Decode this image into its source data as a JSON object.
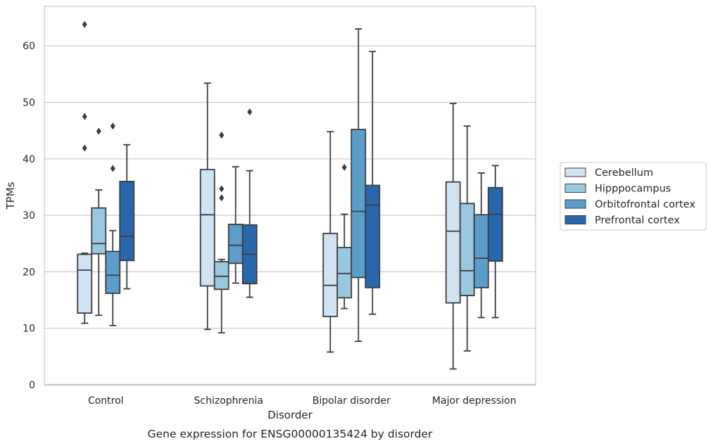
{
  "caption": "Gene expression for ENSG00000135424 by disorder",
  "chart_data": {
    "type": "box",
    "xlabel": "Disorder",
    "ylabel": "TPMs",
    "ylim": [
      0,
      67
    ],
    "yticks": [
      0,
      10,
      20,
      30,
      40,
      50,
      60
    ],
    "grid": true,
    "legend_position": "right",
    "categories": [
      "Control",
      "Schizophrenia",
      "Bipolar disorder",
      "Major depression"
    ],
    "series": [
      {
        "name": "Cerebellum",
        "color": "#d1e2f2",
        "boxes": [
          {
            "whislo": 10.9,
            "q1": 12.7,
            "med": 20.3,
            "q3": 23.1,
            "whishi": 23.3,
            "fliers": [
              63.8,
              47.5,
              41.9
            ]
          },
          {
            "whislo": 9.8,
            "q1": 17.5,
            "med": 30.1,
            "q3": 38.1,
            "whishi": 53.4,
            "fliers": []
          },
          {
            "whislo": 5.8,
            "q1": 12.1,
            "med": 17.6,
            "q3": 26.8,
            "whishi": 44.8,
            "fliers": []
          },
          {
            "whislo": 2.8,
            "q1": 14.5,
            "med": 27.2,
            "q3": 35.9,
            "whishi": 49.8,
            "fliers": []
          }
        ]
      },
      {
        "name": "Hipppocampus",
        "color": "#9ac8e0",
        "boxes": [
          {
            "whislo": 12.3,
            "q1": 23.2,
            "med": 25.0,
            "q3": 31.3,
            "whishi": 34.5,
            "fliers": [
              44.9
            ]
          },
          {
            "whislo": 9.2,
            "q1": 16.9,
            "med": 19.2,
            "q3": 21.8,
            "whishi": 22.2,
            "fliers": [
              44.2,
              34.7,
              33.1
            ]
          },
          {
            "whislo": 13.5,
            "q1": 15.4,
            "med": 19.7,
            "q3": 24.3,
            "whishi": 30.2,
            "fliers": [
              38.5
            ]
          },
          {
            "whislo": 6.0,
            "q1": 15.8,
            "med": 20.2,
            "q3": 32.1,
            "whishi": 45.8,
            "fliers": []
          }
        ]
      },
      {
        "name": "Orbitofrontal cortex",
        "color": "#5a9ec9",
        "boxes": [
          {
            "whislo": 10.5,
            "q1": 16.2,
            "med": 19.4,
            "q3": 23.6,
            "whishi": 27.3,
            "fliers": [
              45.8,
              38.3
            ]
          },
          {
            "whislo": 18.0,
            "q1": 21.5,
            "med": 24.7,
            "q3": 28.4,
            "whishi": 38.6,
            "fliers": []
          },
          {
            "whislo": 7.7,
            "q1": 19.0,
            "med": 30.7,
            "q3": 45.2,
            "whishi": 63.0,
            "fliers": []
          },
          {
            "whislo": 11.9,
            "q1": 17.2,
            "med": 22.4,
            "q3": 30.1,
            "whishi": 37.5,
            "fliers": []
          }
        ]
      },
      {
        "name": "Prefrontal cortex",
        "color": "#2967ac",
        "boxes": [
          {
            "whislo": 17.0,
            "q1": 22.0,
            "med": 26.3,
            "q3": 36.0,
            "whishi": 42.5,
            "fliers": []
          },
          {
            "whislo": 15.5,
            "q1": 17.9,
            "med": 23.1,
            "q3": 28.3,
            "whishi": 37.9,
            "fliers": [
              48.3
            ]
          },
          {
            "whislo": 12.5,
            "q1": 17.2,
            "med": 31.8,
            "q3": 35.3,
            "whishi": 59.0,
            "fliers": []
          },
          {
            "whislo": 11.9,
            "q1": 21.9,
            "med": 30.2,
            "q3": 34.9,
            "whishi": 38.8,
            "fliers": []
          }
        ]
      }
    ]
  }
}
